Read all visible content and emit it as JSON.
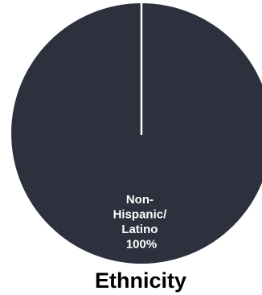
{
  "chart_data": {
    "type": "pie",
    "title": "Ethnicity",
    "slices": [
      {
        "label": [
          "Non-",
          "Hispanic/",
          "Latino"
        ],
        "value": 100,
        "value_label": "100%"
      }
    ],
    "colors": {
      "slice": "#2d303d",
      "separator": "#ffffff",
      "label_text": "#ffffff"
    }
  }
}
